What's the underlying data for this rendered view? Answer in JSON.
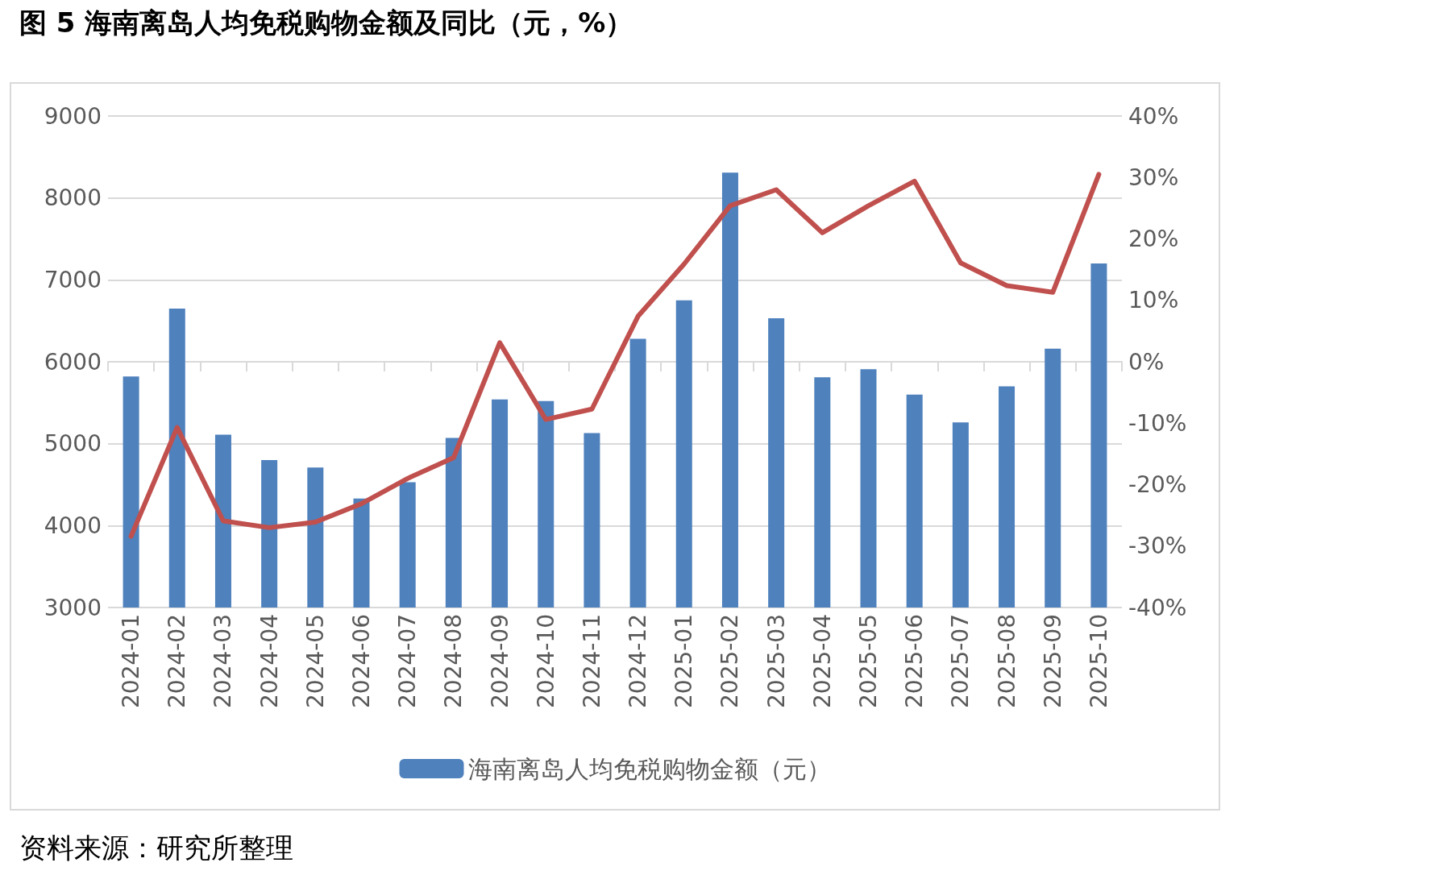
{
  "chart_data": {
    "type": "bar",
    "title": "图 5  海南离岛人均免税购物金额及同比（元，%）",
    "categories": [
      "2024-01",
      "2024-02",
      "2024-03",
      "2024-04",
      "2024-05",
      "2024-06",
      "2024-07",
      "2024-08",
      "2024-09",
      "2024-10",
      "2024-11",
      "2024-12",
      "2025-01",
      "2025-02",
      "2025-03",
      "2025-04",
      "2025-05",
      "2025-06",
      "2025-07",
      "2025-08",
      "2025-09",
      "2025-10"
    ],
    "series": [
      {
        "name": "海南离岛人均免税购物金额（元）",
        "color": "#4f81bd",
        "values": [
          5820,
          6650,
          5110,
          4800,
          4710,
          4330,
          4530,
          5070,
          5540,
          5520,
          5130,
          6280,
          6750,
          8310,
          6530,
          5810,
          5910,
          5600,
          5260,
          5700,
          6160,
          7200
        ]
      },
      {
        "type": "line",
        "axis": "y2",
        "color": "#c0504d",
        "values": [
          -28.4,
          -10.7,
          -25.9,
          -27.0,
          -26.1,
          -23.1,
          -19.0,
          -15.6,
          3.1,
          -9.4,
          -7.7,
          7.4,
          15.9,
          25.4,
          28.0,
          21.0,
          25.4,
          29.4,
          16.1,
          12.4,
          11.3,
          30.5
        ]
      }
    ],
    "ylim": [
      3000,
      9000
    ],
    "yticks": [
      3000,
      4000,
      5000,
      6000,
      7000,
      8000,
      9000
    ],
    "y2lim": [
      -40,
      40
    ],
    "y2ticks": [
      {
        "value": -40,
        "label": "-40%"
      },
      {
        "value": -30,
        "label": "-30%"
      },
      {
        "value": -20,
        "label": "-20%"
      },
      {
        "value": -10,
        "label": "-10%"
      },
      {
        "value": 0,
        "label": "0%"
      },
      {
        "value": 10,
        "label": "10%"
      },
      {
        "value": 20,
        "label": "20%"
      },
      {
        "value": 30,
        "label": "30%"
      },
      {
        "value": 40,
        "label": "40%"
      }
    ],
    "grid": "y",
    "legend": "bottom",
    "marker": "none",
    "line_style": "solid",
    "annotations": [
      "资料来源：研究所整理"
    ]
  }
}
